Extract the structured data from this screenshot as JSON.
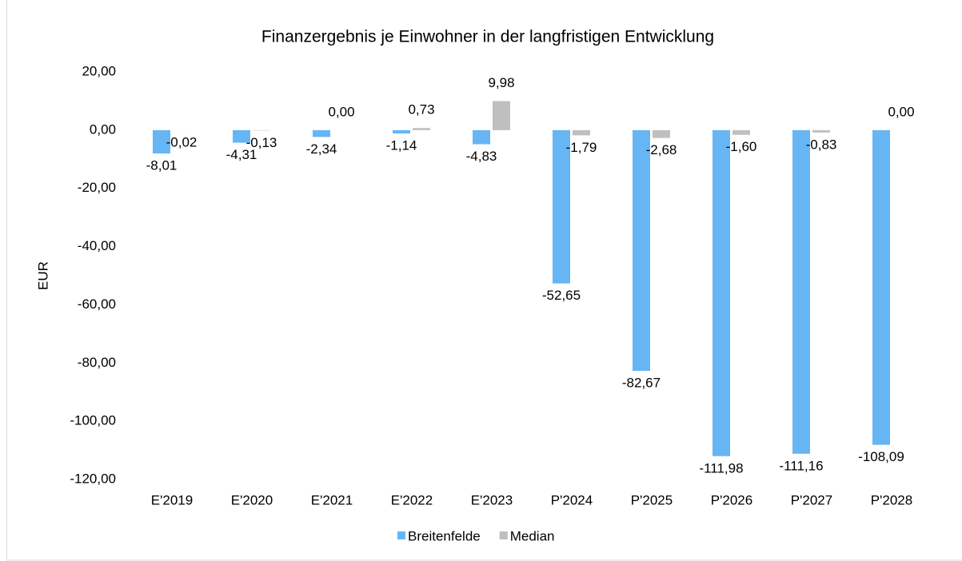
{
  "chart_data": {
    "type": "bar",
    "title": "Finanzergebnis je Einwohner in der langfristigen Entwicklung",
    "y_label": "EUR",
    "categories": [
      "E'2019",
      "E'2020",
      "E'2021",
      "E'2022",
      "E'2023",
      "P'2024",
      "P'2025",
      "P'2026",
      "P'2027",
      "P'2028"
    ],
    "series": [
      {
        "name": "Breitenfelde",
        "color": "#66b5f5",
        "values": [
          -8.01,
          -4.31,
          -2.34,
          -1.14,
          -4.83,
          -52.65,
          -82.67,
          -111.98,
          -111.16,
          -108.09
        ],
        "value_labels": [
          "-8,01",
          "-4,31",
          "-2,34",
          "-1,14",
          "-4,83",
          "-52,65",
          "-82,67",
          "-111,98",
          "-111,16",
          "-108,09"
        ]
      },
      {
        "name": "Median",
        "color": "#bfbfbf",
        "values": [
          -0.02,
          -0.13,
          0,
          0.73,
          9.98,
          -1.79,
          -2.68,
          -1.6,
          -0.83,
          0
        ],
        "value_labels": [
          "-0,02",
          "-0,13",
          "0,00",
          "0,73",
          "9,98",
          "-1,79",
          "-2,68",
          "-1,60",
          "-0,83",
          "0,00"
        ]
      }
    ],
    "ylim": [
      -120,
      20
    ],
    "yticks": [
      {
        "value": 20,
        "label": "20,00"
      },
      {
        "value": 0,
        "label": "0,00"
      },
      {
        "value": -20,
        "label": "-20,00"
      },
      {
        "value": -40,
        "label": "-40,00"
      },
      {
        "value": -60,
        "label": "-60,00"
      },
      {
        "value": -80,
        "label": "-80,00"
      },
      {
        "value": -100,
        "label": "-100,00"
      },
      {
        "value": -120,
        "label": "-120,00"
      }
    ],
    "grid": false,
    "legend": "bottom"
  }
}
